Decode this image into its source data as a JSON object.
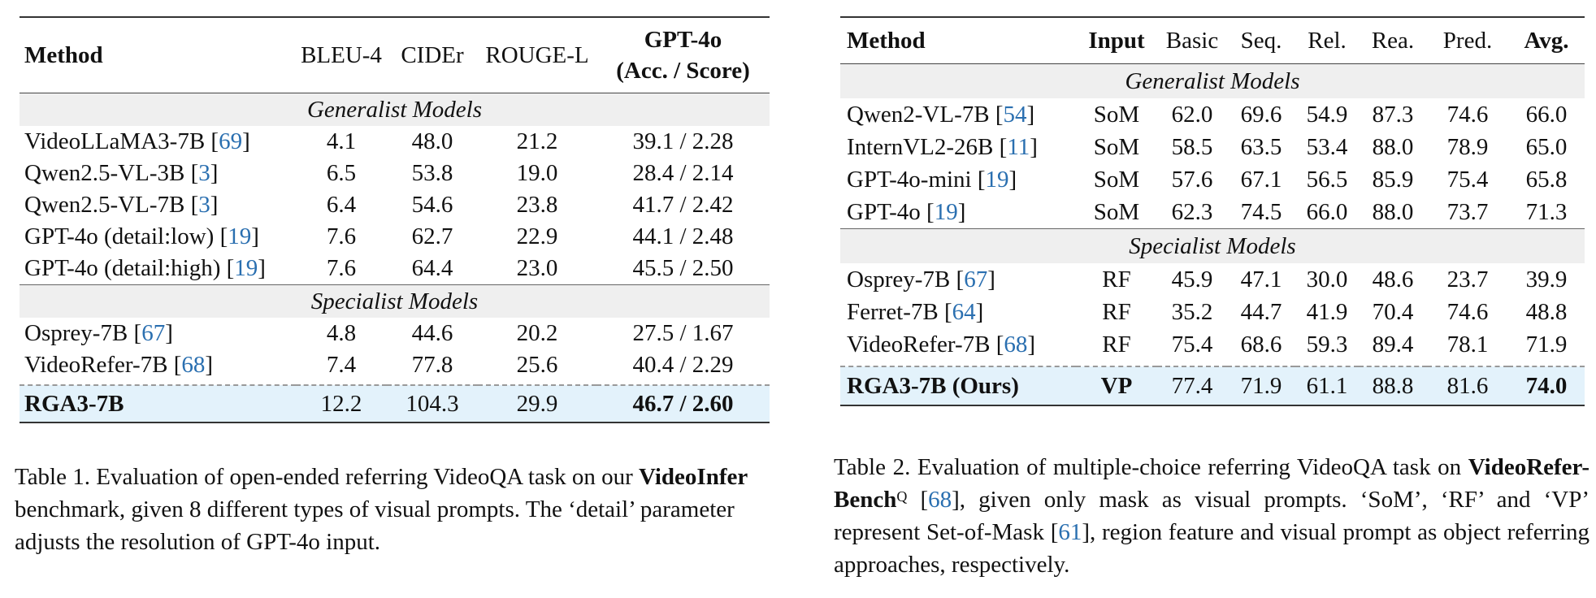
{
  "table1": {
    "headers": {
      "method": "Method",
      "bleu": "BLEU-4",
      "cider": "CIDEr",
      "rouge": "ROUGE-L",
      "gpt_line1": "GPT-4o",
      "gpt_line2": "(Acc. / Score)"
    },
    "sections": {
      "generalist": "Generalist Models",
      "specialist": "Specialist Models"
    },
    "generalist_rows": [
      {
        "name": "VideoLLaMA3-7B",
        "cite": "69",
        "bleu": "4.1",
        "cider": "48.0",
        "rouge": "21.2",
        "gpt": "39.1 / 2.28"
      },
      {
        "name": "Qwen2.5-VL-3B",
        "cite": "3",
        "bleu": "6.5",
        "cider": "53.8",
        "rouge": "19.0",
        "gpt": "28.4 / 2.14"
      },
      {
        "name": "Qwen2.5-VL-7B",
        "cite": "3",
        "bleu": "6.4",
        "cider": "54.6",
        "rouge": "23.8",
        "gpt": "41.7 / 2.42"
      },
      {
        "name": "GPT-4o (detail:low)",
        "cite": "19",
        "bleu": "7.6",
        "cider": "62.7",
        "rouge": "22.9",
        "gpt": "44.1 / 2.48"
      },
      {
        "name": "GPT-4o (detail:high)",
        "cite": "19",
        "bleu": "7.6",
        "cider": "64.4",
        "rouge": "23.0",
        "gpt": "45.5 / 2.50"
      }
    ],
    "specialist_rows": [
      {
        "name": "Osprey-7B",
        "cite": "67",
        "bleu": "4.8",
        "cider": "44.6",
        "rouge": "20.2",
        "gpt": "27.5 / 1.67"
      },
      {
        "name": "VideoRefer-7B",
        "cite": "68",
        "bleu": "7.4",
        "cider": "77.8",
        "rouge": "25.6",
        "gpt": "40.4 / 2.29"
      }
    ],
    "ours": {
      "name": "RGA3-7B",
      "bleu": "12.2",
      "cider": "104.3",
      "rouge": "29.9",
      "gpt": "46.7 / 2.60"
    }
  },
  "table2": {
    "headers": {
      "method": "Method",
      "input": "Input",
      "basic": "Basic",
      "seq": "Seq.",
      "rel": "Rel.",
      "rea": "Rea.",
      "pred": "Pred.",
      "avg": "Avg."
    },
    "sections": {
      "generalist": "Generalist Models",
      "specialist": "Specialist Models"
    },
    "generalist_rows": [
      {
        "name": "Qwen2-VL-7B",
        "cite": "54",
        "input": "SoM",
        "basic": "62.0",
        "seq": "69.6",
        "rel": "54.9",
        "rea": "87.3",
        "pred": "74.6",
        "avg": "66.0"
      },
      {
        "name": "InternVL2-26B",
        "cite": "11",
        "input": "SoM",
        "basic": "58.5",
        "seq": "63.5",
        "rel": "53.4",
        "rea": "88.0",
        "pred": "78.9",
        "avg": "65.0"
      },
      {
        "name": "GPT-4o-mini",
        "cite": "19",
        "input": "SoM",
        "basic": "57.6",
        "seq": "67.1",
        "rel": "56.5",
        "rea": "85.9",
        "pred": "75.4",
        "avg": "65.8"
      },
      {
        "name": "GPT-4o",
        "cite": "19",
        "input": "SoM",
        "basic": "62.3",
        "seq": "74.5",
        "rel": "66.0",
        "rea": "88.0",
        "pred": "73.7",
        "avg": "71.3"
      }
    ],
    "specialist_rows": [
      {
        "name": "Osprey-7B",
        "cite": "67",
        "input": "RF",
        "basic": "45.9",
        "seq": "47.1",
        "rel": "30.0",
        "rea": "48.6",
        "pred": "23.7",
        "avg": "39.9"
      },
      {
        "name": "Ferret-7B",
        "cite": "64",
        "input": "RF",
        "basic": "35.2",
        "seq": "44.7",
        "rel": "41.9",
        "rea": "70.4",
        "pred": "74.6",
        "avg": "48.8"
      },
      {
        "name": "VideoRefer-7B",
        "cite": "68",
        "input": "RF",
        "basic": "75.4",
        "seq": "68.6",
        "rel": "59.3",
        "rea": "89.4",
        "pred": "78.1",
        "avg": "71.9"
      }
    ],
    "ours": {
      "name": "RGA3-7B (Ours)",
      "input": "VP",
      "basic": "77.4",
      "seq": "71.9",
      "rel": "61.1",
      "rea": "88.8",
      "pred": "81.6",
      "avg": "74.0"
    }
  },
  "caption1": {
    "lead": "Table 1. Evaluation of open-ended referring VideoQA task on our",
    "bold": "VideoInfer",
    "rest": " benchmark, given 8 different types of visual prompts. The ‘detail’ parameter adjusts the resolution of GPT-4o input."
  },
  "caption2": {
    "lead": "Table 2.  Evaluation of multiple-choice referring VideoQA task on ",
    "bold": "VideoRefer-Bench",
    "sup": "Q",
    "cite1": "68",
    "mid": ", given only mask as visual prompts. ‘SoM’, ‘RF’ and ‘VP’ represent Set-of-Mask [",
    "cite2": "61",
    "rest": "], region feature and visual prompt as object referring approaches, respectively."
  }
}
